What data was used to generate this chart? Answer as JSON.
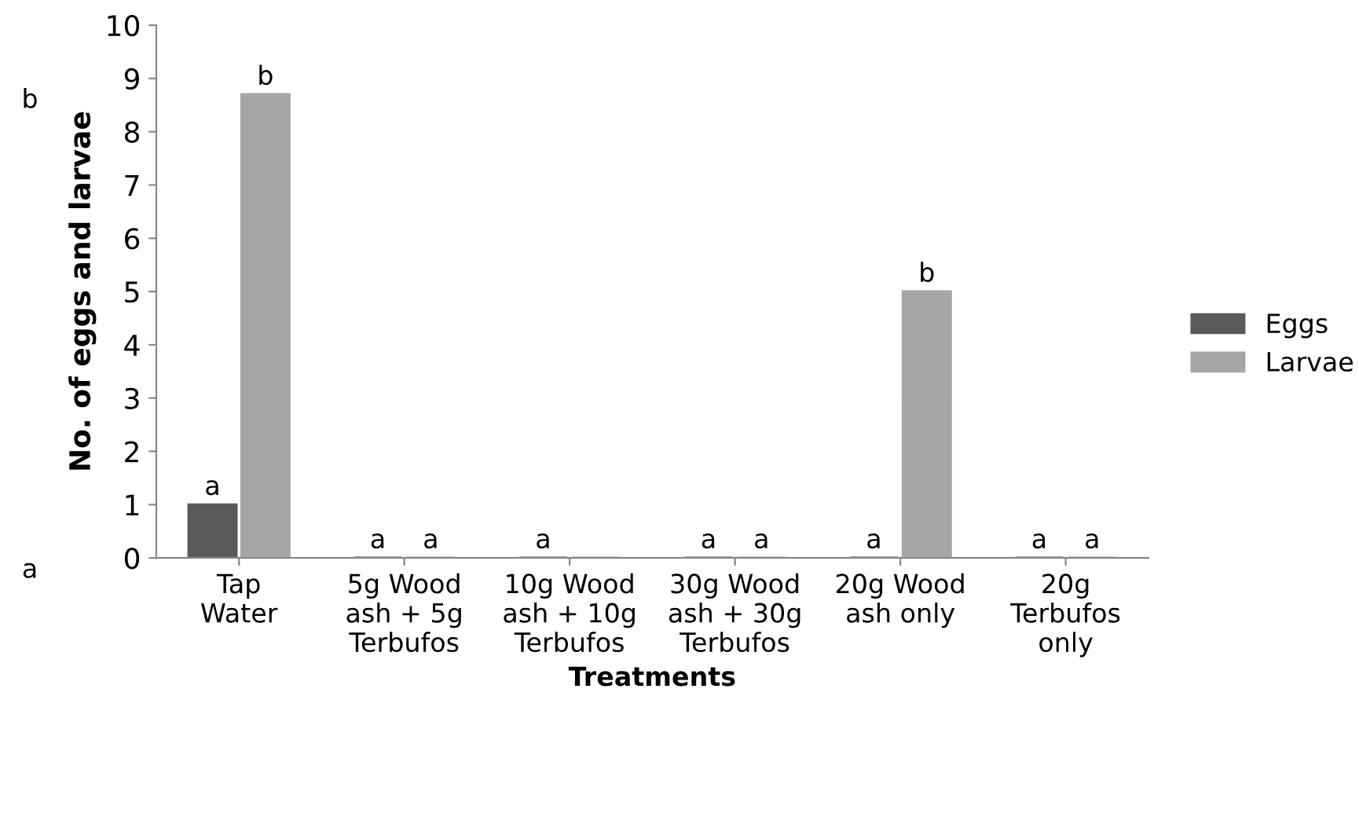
{
  "chart_data": {
    "type": "bar",
    "xlabel": "Treatments",
    "ylabel": "No. of eggs and larvae",
    "categories": [
      "Tap\nWater",
      "5g Wood\nash + 5g\nTerbufos",
      "10g Wood\nash + 10g\nTerbufos",
      "30g Wood\nash + 30g\nTerbufos",
      "20g Wood\nash only",
      "20g\nTerbufos\nonly"
    ],
    "series": [
      {
        "name": "Eggs",
        "color": "#5a5a5a",
        "values": [
          1,
          0,
          0,
          0,
          0,
          0
        ],
        "value_labels": [
          "a",
          "a",
          "a",
          "a",
          "a",
          "a"
        ]
      },
      {
        "name": "Larvae",
        "color": "#a6a6a6",
        "values": [
          8.7,
          0,
          0,
          0,
          5,
          0
        ],
        "value_labels": [
          "b",
          "a",
          null,
          "a",
          "b",
          "a"
        ]
      }
    ],
    "annotations": [
      "b",
      "a"
    ],
    "ylim": [
      0,
      10
    ],
    "yticks": [
      0,
      1,
      2,
      3,
      4,
      5,
      6,
      7,
      8,
      9,
      10
    ],
    "grid": false,
    "legend": "right"
  }
}
